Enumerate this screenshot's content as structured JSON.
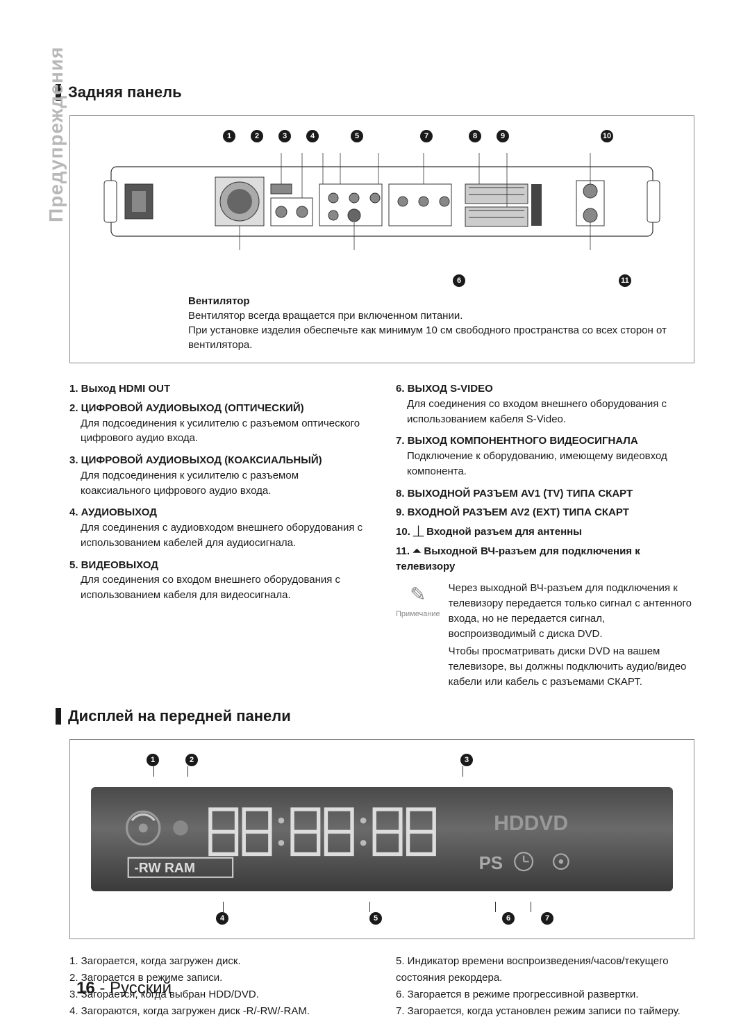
{
  "sidebar_label": "Предупреждения",
  "section1_title": "Задняя панель",
  "back_panel": {
    "callouts_top": [
      "1",
      "2",
      "3",
      "4",
      "5",
      "7",
      "8",
      "9",
      "10"
    ],
    "callouts_bottom": [
      "6",
      "11"
    ],
    "fan_label": "Вентилятор",
    "fan_text1": "Вентилятор всегда вращается при включенном питании.",
    "fan_text2": "При установке изделия обеспечьте как минимум 10 см свободного пространства со всех сторон от вентилятора."
  },
  "left_items": [
    {
      "title": "1. Выход HDMI OUT",
      "desc": ""
    },
    {
      "title": "2. ЦИФРОВОЙ АУДИОВЫХОД (ОПТИЧЕСКИЙ)",
      "desc": "Для подсоединения к усилителю с разъемом оптического цифрового аудио входа."
    },
    {
      "title": "3. ЦИФРОВОЙ АУДИОВЫХОД (КОАКСИАЛЬНЫЙ)",
      "desc": "Для подсоединения к усилителю с разъемом коаксиального цифрового аудио входа."
    },
    {
      "title": "4. АУДИОВЫХОД",
      "desc": "Для соединения с аудиовходом внешнего оборудования с использованием кабелей для аудиосигнала."
    },
    {
      "title": "5. ВИДЕОВЫХОД",
      "desc": "Для соединения со входом внешнего оборудования с использованием кабеля для видеосигнала."
    }
  ],
  "right_items": [
    {
      "title": "6. ВЫХОД S-VIDEO",
      "desc": "Для соединения со входом внешнего оборудования с использованием кабеля S-Video."
    },
    {
      "title": "7. ВЫХОД КОМПОНЕНТНОГО ВИДЕОСИГНАЛА",
      "desc": "Подключение к оборудованию, имеющему видеовход компонента."
    },
    {
      "title": "8. ВЫХОДНОЙ РАЗЪЕМ AV1 (TV) ТИПА СКАРТ",
      "desc": ""
    },
    {
      "title": "9. ВХОДНОЙ РАЗЪЕМ AV2 (EXT) ТИПА СКАРТ",
      "desc": ""
    },
    {
      "title": "10. ⏊ Входной разъем для антенны",
      "desc": ""
    },
    {
      "title": "11. ⏶ Выходной ВЧ-разъем для подключения к телевизору",
      "desc": ""
    }
  ],
  "note": {
    "label": "Примечание",
    "text1": "Через выходной ВЧ-разъем для подключения к телевизору передается только сигнал с антенного входа, но не передается сигнал, воспроизводимый с диска DVD.",
    "text2": "Чтобы просматривать диски DVD на вашем телевизоре, вы должны подключить аудио/видео кабели или кабель с разъемами СКАРТ."
  },
  "section2_title": "Дисплей на передней панели",
  "display": {
    "top_callouts": [
      "1",
      "2",
      "3"
    ],
    "bottom_callouts": [
      "4",
      "5",
      "6",
      "7"
    ],
    "text_hddvd": "HDDVD",
    "text_rwram": "-RW RAM",
    "text_ps": "PS"
  },
  "display_left": [
    "1. Загорается, когда загружен диск.",
    "2. Загорается в режиме записи.",
    "3. Загорается, когда выбран HDD/DVD.",
    "4. Загораются, когда загружен диск -R/-RW/-RAM."
  ],
  "display_right": [
    "5. Индикатор времени воспроизведения/часов/текущего состояния рекордера.",
    "6. Загорается в режиме прогрессивной развертки.",
    "7. Загорается, когда установлен режим записи по таймеру."
  ],
  "page_number": "16",
  "page_lang": "Русский"
}
